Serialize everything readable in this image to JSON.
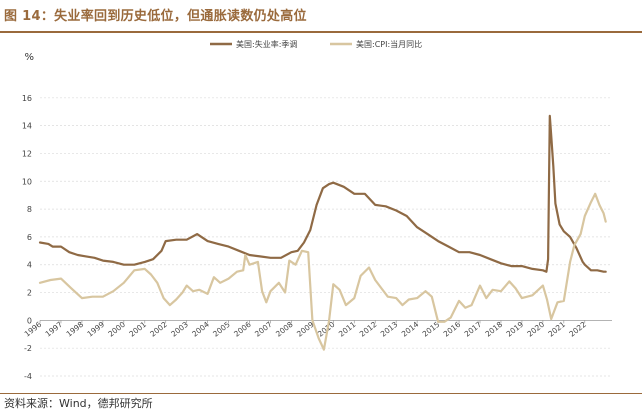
{
  "header": {
    "title": "图 14：失业率回到历史低位，但通胀读数仍处高位"
  },
  "footer": {
    "source": "资料来源：Wind，德邦研究所"
  },
  "colors": {
    "unemployment": "#8f6a45",
    "cpi": "#d8c6a0",
    "title": "#9a6a3c",
    "grid": "#dcdcdc"
  },
  "chart_data": {
    "type": "line",
    "unit_label": "%",
    "ylim": [
      -4,
      18
    ],
    "yticks": [
      "-4",
      "-2",
      "0",
      "2",
      "4",
      "6",
      "8",
      "10",
      "12",
      "14",
      "16"
    ],
    "xlim": [
      1996,
      2023.3
    ],
    "xticks": [
      "1996",
      "1997",
      "1998",
      "1999",
      "2000",
      "2001",
      "2002",
      "2003",
      "2004",
      "2005",
      "2006",
      "2007",
      "2008",
      "2009",
      "2010",
      "2011",
      "2012",
      "2013",
      "2014",
      "2015",
      "2016",
      "2017",
      "2018",
      "2019",
      "2020",
      "2021",
      "2022"
    ],
    "grid": true,
    "legend_position": "top-center",
    "series": [
      {
        "name": "美国:失业率:季调",
        "x": [
          1996.0,
          1996.4,
          1996.6,
          1997.0,
          1997.4,
          1997.8,
          1998.2,
          1998.6,
          1999.0,
          1999.5,
          2000.0,
          2000.5,
          2001.0,
          2001.4,
          2001.8,
          2002.0,
          2002.5,
          2003.0,
          2003.5,
          2004.0,
          2004.5,
          2005.0,
          2005.5,
          2006.0,
          2006.5,
          2007.0,
          2007.5,
          2008.0,
          2008.3,
          2008.6,
          2008.9,
          2009.2,
          2009.5,
          2009.8,
          2010.0,
          2010.5,
          2011.0,
          2011.5,
          2012.0,
          2012.5,
          2013.0,
          2013.5,
          2014.0,
          2014.5,
          2015.0,
          2015.5,
          2016.0,
          2016.5,
          2017.0,
          2017.5,
          2018.0,
          2018.5,
          2019.0,
          2019.5,
          2020.0,
          2020.17,
          2020.25,
          2020.33,
          2020.4,
          2020.5,
          2020.6,
          2020.8,
          2021.0,
          2021.3,
          2021.6,
          2021.9,
          2022.0,
          2022.3,
          2022.6,
          2022.9,
          2023.0
        ],
        "y": [
          5.6,
          5.5,
          5.3,
          5.3,
          4.9,
          4.7,
          4.6,
          4.5,
          4.3,
          4.2,
          4.0,
          4.0,
          4.2,
          4.4,
          5.0,
          5.7,
          5.8,
          5.8,
          6.2,
          5.7,
          5.5,
          5.3,
          5.0,
          4.7,
          4.6,
          4.5,
          4.5,
          4.9,
          5.0,
          5.6,
          6.5,
          8.3,
          9.5,
          9.8,
          9.9,
          9.6,
          9.1,
          9.1,
          8.3,
          8.2,
          7.9,
          7.5,
          6.7,
          6.2,
          5.7,
          5.3,
          4.9,
          4.9,
          4.7,
          4.4,
          4.1,
          3.9,
          3.9,
          3.7,
          3.6,
          3.5,
          4.4,
          14.7,
          13.3,
          11.1,
          8.4,
          6.9,
          6.4,
          6.0,
          5.2,
          4.2,
          4.0,
          3.6,
          3.6,
          3.5,
          3.5
        ]
      },
      {
        "name": "美国:CPI:当月同比",
        "x": [
          1996.0,
          1996.5,
          1997.0,
          1997.5,
          1998.0,
          1998.5,
          1999.0,
          1999.5,
          2000.0,
          2000.5,
          2001.0,
          2001.3,
          2001.6,
          2001.9,
          2002.2,
          2002.5,
          2002.8,
          2003.0,
          2003.3,
          2003.6,
          2004.0,
          2004.3,
          2004.6,
          2005.0,
          2005.4,
          2005.7,
          2005.8,
          2006.0,
          2006.4,
          2006.6,
          2006.8,
          2007.0,
          2007.4,
          2007.7,
          2007.9,
          2008.2,
          2008.5,
          2008.8,
          2009.0,
          2009.3,
          2009.55,
          2009.8,
          2010.0,
          2010.3,
          2010.6,
          2011.0,
          2011.3,
          2011.7,
          2012.0,
          2012.3,
          2012.6,
          2013.0,
          2013.3,
          2013.6,
          2014.0,
          2014.4,
          2014.7,
          2015.0,
          2015.3,
          2015.6,
          2016.0,
          2016.3,
          2016.6,
          2017.0,
          2017.3,
          2017.6,
          2018.0,
          2018.4,
          2018.7,
          2019.0,
          2019.5,
          2020.0,
          2020.2,
          2020.4,
          2020.7,
          2021.0,
          2021.3,
          2021.5,
          2021.8,
          2022.0,
          2022.3,
          2022.5,
          2022.7,
          2022.9,
          2023.0
        ],
        "y": [
          2.7,
          2.9,
          3.0,
          2.3,
          1.6,
          1.7,
          1.7,
          2.1,
          2.7,
          3.6,
          3.7,
          3.3,
          2.7,
          1.6,
          1.1,
          1.5,
          2.0,
          2.5,
          2.1,
          2.2,
          1.9,
          3.1,
          2.7,
          3.0,
          3.5,
          3.6,
          4.7,
          4.0,
          4.2,
          2.1,
          1.3,
          2.1,
          2.7,
          2.0,
          4.3,
          4.0,
          5.0,
          4.9,
          0.0,
          -1.3,
          -2.1,
          0.0,
          2.6,
          2.2,
          1.1,
          1.6,
          3.2,
          3.8,
          2.9,
          2.3,
          1.7,
          1.6,
          1.1,
          1.5,
          1.6,
          2.1,
          1.7,
          -0.1,
          -0.1,
          0.2,
          1.4,
          0.9,
          1.1,
          2.5,
          1.6,
          2.2,
          2.1,
          2.8,
          2.3,
          1.6,
          1.8,
          2.5,
          1.5,
          0.1,
          1.3,
          1.4,
          4.2,
          5.4,
          6.2,
          7.5,
          8.5,
          9.1,
          8.3,
          7.7,
          7.1
        ]
      }
    ]
  }
}
